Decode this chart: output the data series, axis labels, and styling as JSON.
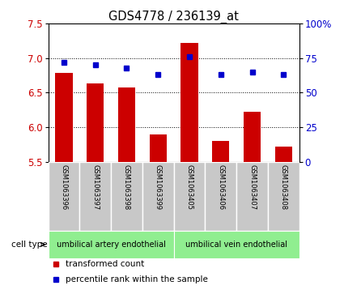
{
  "title": "GDS4778 / 236139_at",
  "samples": [
    "GSM1063396",
    "GSM1063397",
    "GSM1063398",
    "GSM1063399",
    "GSM1063405",
    "GSM1063406",
    "GSM1063407",
    "GSM1063408"
  ],
  "bar_values": [
    6.78,
    6.63,
    6.57,
    5.9,
    7.22,
    5.8,
    6.22,
    5.72
  ],
  "percentile_values": [
    72,
    70,
    68,
    63,
    76,
    63,
    65,
    63
  ],
  "ylim_left": [
    5.5,
    7.5
  ],
  "ylim_right": [
    0,
    100
  ],
  "yticks_left": [
    5.5,
    6.0,
    6.5,
    7.0,
    7.5
  ],
  "yticks_right": [
    0,
    25,
    50,
    75,
    100
  ],
  "yticklabels_right": [
    "0",
    "25",
    "50",
    "75",
    "100%"
  ],
  "bar_color": "#CC0000",
  "square_color": "#0000CC",
  "grid_dotline_color": "#000000",
  "cell_type_bg": "#90EE90",
  "sample_box_bg": "#C8C8C8",
  "cell_type_label": "cell type",
  "cell_type_groups": [
    {
      "label": "umbilical artery endothelial",
      "indices": [
        0,
        1,
        2,
        3
      ]
    },
    {
      "label": "umbilical vein endothelial",
      "indices": [
        4,
        5,
        6,
        7
      ]
    }
  ],
  "legend_items": [
    {
      "label": "transformed count",
      "color": "#CC0000"
    },
    {
      "label": "percentile rank within the sample",
      "color": "#0000CC"
    }
  ],
  "tick_label_color_left": "#CC0000",
  "tick_label_color_right": "#0000CC",
  "bar_bottom": 5.5,
  "bar_width": 0.55
}
